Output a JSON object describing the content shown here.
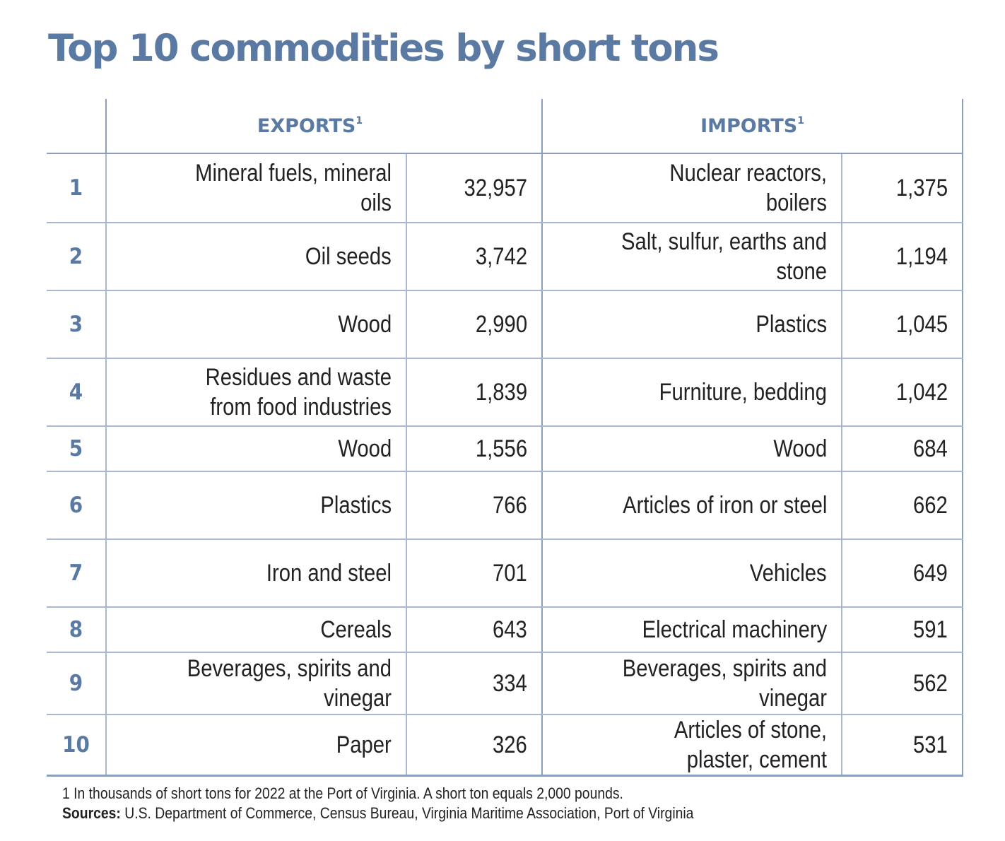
{
  "title": "Top 10 commodities by short tons",
  "headers": {
    "exports": "EXPORTS",
    "imports": "IMPORTS",
    "footnote_mark": "1"
  },
  "rows": [
    {
      "rank": "1",
      "export_name": "Mineral fuels, mineral oils",
      "export_value": "32,957",
      "import_name": "Nuclear reactors, boilers",
      "import_value": "1,375"
    },
    {
      "rank": "2",
      "export_name": "Oil seeds",
      "export_value": "3,742",
      "import_name": "Salt, sulfur, earths and stone",
      "import_value": "1,194"
    },
    {
      "rank": "3",
      "export_name": "Wood",
      "export_value": "2,990",
      "import_name": "Plastics",
      "import_value": "1,045"
    },
    {
      "rank": "4",
      "export_name": "Residues and waste from food industries",
      "export_value": "1,839",
      "import_name": "Furniture, bedding",
      "import_value": "1,042"
    },
    {
      "rank": "5",
      "export_name": "Wood",
      "export_value": "1,556",
      "import_name": "Wood",
      "import_value": "684"
    },
    {
      "rank": "6",
      "export_name": "Plastics",
      "export_value": "766",
      "import_name": "Articles of iron or steel",
      "import_value": "662"
    },
    {
      "rank": "7",
      "export_name": "Iron and steel",
      "export_value": "701",
      "import_name": "Vehicles",
      "import_value": "649"
    },
    {
      "rank": "8",
      "export_name": "Cereals",
      "export_value": "643",
      "import_name": "Electrical machinery",
      "import_value": "591"
    },
    {
      "rank": "9",
      "export_name": "Beverages, spirits and vinegar",
      "export_value": "334",
      "import_name": "Beverages, spirits and vinegar",
      "import_value": "562"
    },
    {
      "rank": "10",
      "export_name": "Paper",
      "export_value": "326",
      "import_name": "Articles of stone, plaster, cement",
      "import_value": "531"
    }
  ],
  "footnote": "1 In thousands of short tons for 2022 at the Port of Virginia. A short ton equals 2,000 pounds.",
  "sources_label": "Sources:",
  "sources_text": " U.S. Department of Commerce, Census Bureau, Virginia Maritime Association, Port of Virginia",
  "colors": {
    "accent": "#5b7aa3",
    "rule": "#a8b8cf",
    "text": "#222222"
  }
}
